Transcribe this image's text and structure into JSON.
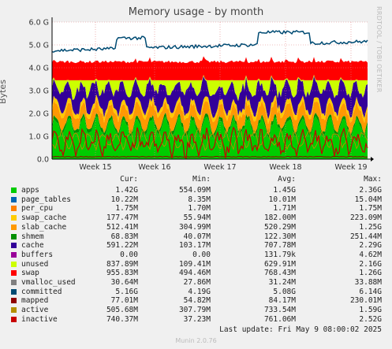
{
  "chart_data": {
    "type": "area",
    "title": "Memory usage - by month",
    "ylabel": "Bytes",
    "side_label": "RRDTOOL / TOBI OETIKER",
    "ylim": [
      0,
      6
    ],
    "y_unit": "G",
    "y_ticks": [
      "0.0",
      "1.0 G",
      "2.0 G",
      "3.0 G",
      "4.0 G",
      "5.0 G",
      "6.0 G"
    ],
    "x_ticks": [
      "Week 15",
      "Week 16",
      "Week 17",
      "Week 18",
      "Week 19"
    ],
    "grid": true,
    "legend_columns": [
      "Cur:",
      "Min:",
      "Avg:",
      "Max:"
    ],
    "series": [
      {
        "name": "apps",
        "color": "#00cc00",
        "cur": "1.42G",
        "min": "554.09M",
        "avg": "1.45G",
        "max": "2.36G"
      },
      {
        "name": "page_tables",
        "color": "#0066b3",
        "cur": "10.22M",
        "min": "8.35M",
        "avg": "10.01M",
        "max": "15.04M"
      },
      {
        "name": "per_cpu",
        "color": "#ff8000",
        "cur": "1.75M",
        "min": "1.70M",
        "avg": "1.71M",
        "max": "1.75M"
      },
      {
        "name": "swap_cache",
        "color": "#ffcc00",
        "cur": "177.47M",
        "min": "55.94M",
        "avg": "182.00M",
        "max": "223.09M"
      },
      {
        "name": "slab_cache",
        "color": "#ff9900",
        "cur": "512.41M",
        "min": "304.99M",
        "avg": "520.29M",
        "max": "1.25G"
      },
      {
        "name": "shmem",
        "color": "#008f00",
        "cur": "68.83M",
        "min": "40.07M",
        "avg": "122.30M",
        "max": "251.44M"
      },
      {
        "name": "cache",
        "color": "#330099",
        "cur": "591.22M",
        "min": "103.17M",
        "avg": "707.78M",
        "max": "2.29G"
      },
      {
        "name": "buffers",
        "color": "#990099",
        "cur": "0.00",
        "min": "0.00",
        "avg": "131.79k",
        "max": "4.62M"
      },
      {
        "name": "unused",
        "color": "#ccff00",
        "cur": "837.89M",
        "min": "109.41M",
        "avg": "629.91M",
        "max": "2.16G"
      },
      {
        "name": "swap",
        "color": "#ff0000",
        "cur": "955.83M",
        "min": "494.46M",
        "avg": "768.43M",
        "max": "1.26G"
      },
      {
        "name": "vmalloc_used",
        "color": "#808080",
        "cur": "30.64M",
        "min": "27.86M",
        "avg": "31.24M",
        "max": "33.88M"
      },
      {
        "name": "committed",
        "color": "#004b73",
        "cur": "5.16G",
        "min": "4.19G",
        "avg": "5.08G",
        "max": "6.14G"
      },
      {
        "name": "mapped",
        "color": "#8f0000",
        "cur": "77.01M",
        "min": "54.82M",
        "avg": "84.17M",
        "max": "230.01M"
      },
      {
        "name": "active",
        "color": "#b38f00",
        "cur": "505.68M",
        "min": "307.79M",
        "avg": "733.54M",
        "max": "1.59G"
      },
      {
        "name": "inactive",
        "color": "#c80000",
        "cur": "740.37M",
        "min": "37.23M",
        "avg": "761.06M",
        "max": "2.52G"
      }
    ]
  },
  "footer": {
    "last_update": "Last update:  Fri May  9 08:00:02 2025",
    "munin_version": "Munin 2.0.76"
  }
}
